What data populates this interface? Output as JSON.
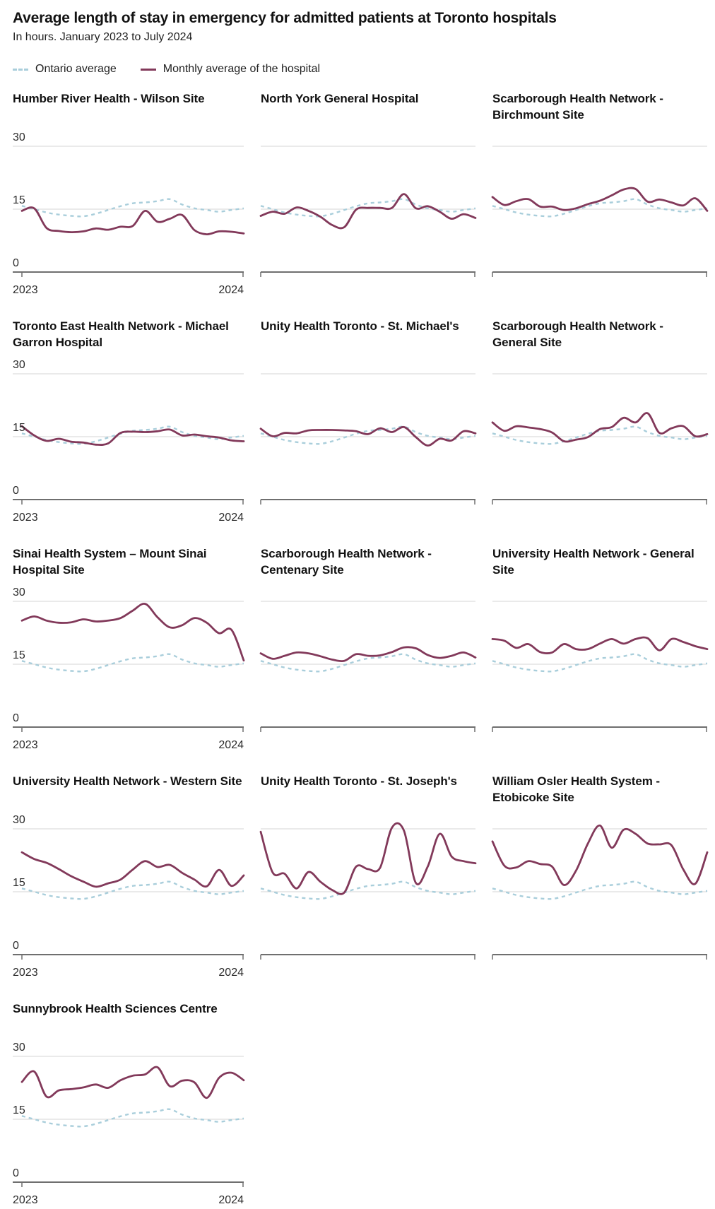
{
  "header": {
    "title": "Average length of stay in emergency for admitted patients at Toronto  hospitals",
    "subtitle": "In hours. January 2023 to July 2024"
  },
  "legend": [
    {
      "label": "Ontario average",
      "style": "dashed",
      "color": "#a9cedb"
    },
    {
      "label": "Monthly average of the hospital",
      "style": "solid",
      "color": "#82395a"
    }
  ],
  "colors": {
    "hospital_line": "#82395a",
    "ontario_line": "#a9cedb",
    "gridline": "#d5d5d5",
    "axis": "#6f6f6f",
    "label_text": "#2b2b2b"
  },
  "chart_data": {
    "type": "line",
    "title": "Average length of stay in emergency for admitted patients at Toronto  hospitals",
    "subtitle": "In hours. January 2023 to July 2024",
    "unit": "hours",
    "ylim": [
      0,
      30
    ],
    "yticks": [
      30,
      15,
      0
    ],
    "xtick_labels": [
      "2023",
      "2024"
    ],
    "grid": "horizontal-at-30-and-15",
    "legend_position": "top",
    "x": [
      "Jan 2023",
      "Feb 2023",
      "Mar 2023",
      "Apr 2023",
      "May 2023",
      "Jun 2023",
      "Jul 2023",
      "Aug 2023",
      "Sep 2023",
      "Oct 2023",
      "Nov 2023",
      "Dec 2023",
      "Jan 2024",
      "Feb 2024",
      "Mar 2024",
      "Apr 2024",
      "May 2024",
      "Jun 2024",
      "Jul 2024"
    ],
    "ontario_average": {
      "name": "Ontario average",
      "values": [
        15.8,
        15.0,
        14.2,
        13.7,
        13.4,
        13.3,
        13.9,
        14.8,
        15.7,
        16.4,
        16.6,
        16.9,
        17.4,
        16.1,
        15.2,
        14.8,
        14.4,
        14.8,
        15.2
      ]
    },
    "hospitals": [
      {
        "title": "Humber River Health - Wilson Site",
        "values": [
          14.6,
          15.2,
          10.5,
          9.8,
          9.5,
          9.7,
          10.4,
          10.1,
          10.8,
          11.0,
          14.6,
          12.0,
          12.7,
          13.6,
          10.0,
          9.0,
          9.7,
          9.6,
          9.2
        ]
      },
      {
        "title": "North York General Hospital",
        "values": [
          13.4,
          14.4,
          13.9,
          15.4,
          14.6,
          13.2,
          11.2,
          10.7,
          14.9,
          15.3,
          15.3,
          15.3,
          18.6,
          15.2,
          15.7,
          14.4,
          12.7,
          13.8,
          12.9
        ]
      },
      {
        "title": "Scarborough Health Network - Birchmount Site",
        "values": [
          17.9,
          16.0,
          16.9,
          17.4,
          15.6,
          15.6,
          14.8,
          15.2,
          16.2,
          17.0,
          18.3,
          19.7,
          19.8,
          16.8,
          17.3,
          16.6,
          15.9,
          17.6,
          14.6
        ]
      },
      {
        "title": "Toronto East Health Network - Michael Garron Hospital",
        "values": [
          17.5,
          15.3,
          14.0,
          14.5,
          13.8,
          13.6,
          13.1,
          13.4,
          15.9,
          16.2,
          16.1,
          16.3,
          16.7,
          15.3,
          15.5,
          15.1,
          14.8,
          14.1,
          13.9
        ]
      },
      {
        "title": "Unity Health Toronto - St. Michael's",
        "values": [
          16.9,
          15.1,
          15.9,
          15.8,
          16.5,
          16.6,
          16.6,
          16.5,
          16.3,
          15.6,
          17.0,
          16.1,
          17.3,
          14.9,
          12.9,
          14.5,
          14.1,
          16.3,
          15.8
        ]
      },
      {
        "title": "Scarborough Health Network - General Site",
        "values": [
          18.4,
          16.4,
          17.5,
          17.2,
          16.8,
          16.0,
          13.9,
          14.3,
          14.9,
          16.8,
          17.3,
          19.5,
          18.4,
          20.6,
          15.9,
          17.0,
          17.5,
          15.1,
          15.6
        ]
      },
      {
        "title": "Sinai Health System – Mount Sinai Hospital Site",
        "values": [
          25.4,
          26.4,
          25.4,
          24.9,
          25.0,
          25.7,
          25.2,
          25.4,
          26.0,
          27.8,
          29.4,
          26.2,
          23.8,
          24.3,
          26.0,
          24.9,
          22.4,
          23.2,
          15.9
        ]
      },
      {
        "title": "Scarborough Health Network - Centenary Site",
        "values": [
          17.6,
          16.3,
          17.0,
          17.8,
          17.6,
          16.9,
          16.1,
          15.8,
          17.4,
          17.0,
          17.1,
          17.9,
          19.0,
          18.8,
          17.2,
          16.5,
          17.0,
          17.8,
          16.6
        ]
      },
      {
        "title": "University Health Network - General Site",
        "values": [
          21.0,
          20.6,
          18.9,
          19.8,
          17.9,
          17.8,
          19.8,
          18.6,
          18.6,
          19.9,
          21.0,
          19.9,
          21.0,
          21.2,
          18.3,
          21.0,
          20.3,
          19.3,
          18.6
        ]
      },
      {
        "title": "University Health Network - Western Site",
        "values": [
          24.4,
          22.8,
          21.9,
          20.4,
          18.7,
          17.4,
          16.2,
          17.0,
          17.9,
          20.3,
          22.3,
          20.9,
          21.4,
          19.5,
          17.9,
          16.3,
          20.2,
          16.4,
          18.9
        ]
      },
      {
        "title": "Unity Health Toronto - St. Joseph's",
        "values": [
          29.3,
          19.6,
          19.3,
          15.8,
          19.7,
          17.4,
          15.4,
          14.8,
          21.0,
          20.4,
          20.7,
          30.3,
          29.6,
          17.1,
          21.0,
          28.8,
          23.4,
          22.3,
          21.8
        ]
      },
      {
        "title": "William Osler Health System - Etobicoke Site",
        "values": [
          27.0,
          21.2,
          20.8,
          22.3,
          21.6,
          21.0,
          16.6,
          20.0,
          26.5,
          30.8,
          25.5,
          29.8,
          28.8,
          26.5,
          26.3,
          26.1,
          20.3,
          16.9,
          24.4
        ]
      },
      {
        "title": "Sunnybrook Health Sciences Centre",
        "values": [
          23.9,
          26.4,
          20.4,
          21.9,
          22.2,
          22.6,
          23.3,
          22.5,
          24.3,
          25.4,
          25.7,
          27.4,
          22.9,
          24.2,
          23.8,
          20.1,
          24.9,
          26.1,
          24.3
        ]
      }
    ]
  }
}
